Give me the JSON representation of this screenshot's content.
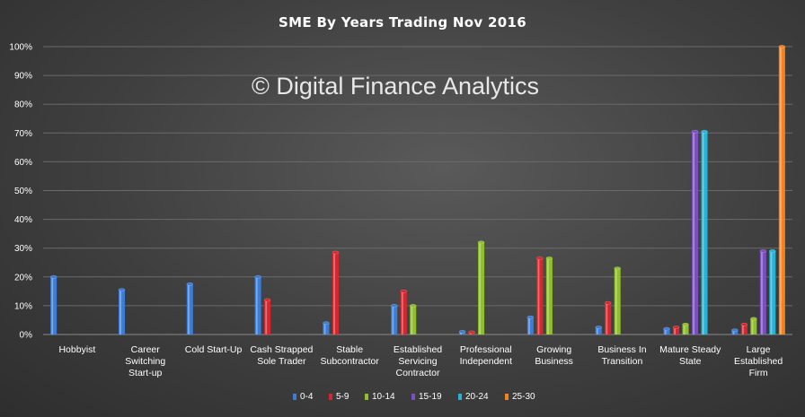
{
  "chart_data": {
    "type": "bar",
    "title": "SME By Years Trading  Nov 2016",
    "watermark": "© Digital Finance Analytics",
    "xlabel": "",
    "ylabel": "",
    "ylim": [
      0,
      100
    ],
    "yticks": [
      "0%",
      "10%",
      "20%",
      "30%",
      "40%",
      "50%",
      "60%",
      "70%",
      "80%",
      "90%",
      "100%"
    ],
    "grid": true,
    "legend_position": "bottom",
    "categories": [
      [
        "Hobbyist"
      ],
      [
        "Career",
        "Switching",
        "Start-up"
      ],
      [
        "Cold Start-Up"
      ],
      [
        "Cash Strapped",
        "Sole Trader"
      ],
      [
        "Stable",
        "Subcontractor"
      ],
      [
        "Established",
        "Servicing",
        "Contractor"
      ],
      [
        "Professional",
        "Independent"
      ],
      [
        "Growing",
        "Business"
      ],
      [
        "Business In",
        "Transition"
      ],
      [
        "Mature Steady",
        "State"
      ],
      [
        "Large",
        "Established",
        "Firm"
      ]
    ],
    "series": [
      {
        "name": "0-4",
        "color": "#3b7dd8",
        "values": [
          20,
          15.5,
          17.5,
          20,
          4,
          10,
          1,
          6,
          2.5,
          2,
          1.5
        ]
      },
      {
        "name": "5-9",
        "color": "#d9262e",
        "values": [
          0,
          0,
          0,
          12,
          28.5,
          15,
          0.8,
          26.5,
          11,
          2.5,
          3.5
        ]
      },
      {
        "name": "10-14",
        "color": "#8fbf2a",
        "values": [
          0,
          0,
          0,
          0,
          0,
          10,
          32,
          26.5,
          23,
          3.5,
          5.5
        ]
      },
      {
        "name": "15-19",
        "color": "#7b4fc2",
        "values": [
          0,
          0,
          0,
          0,
          0,
          0,
          0,
          0,
          0,
          70.5,
          29
        ]
      },
      {
        "name": "20-24",
        "color": "#23b4d8",
        "values": [
          0,
          0,
          0,
          0,
          0,
          0,
          0,
          0,
          0,
          70.5,
          29
        ]
      },
      {
        "name": "25-30",
        "color": "#f5821f",
        "values": [
          0,
          0,
          0,
          0,
          0,
          0,
          0,
          0,
          0,
          0,
          100
        ]
      }
    ]
  }
}
